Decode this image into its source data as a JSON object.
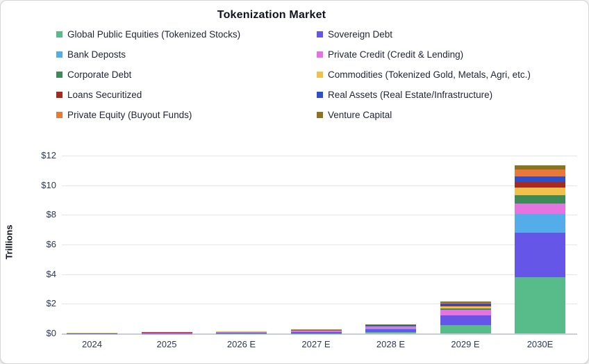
{
  "chart_data": {
    "type": "bar",
    "stacked": true,
    "title": "Tokenization Market",
    "ylabel": "Trillions",
    "ytick_prefix": "$",
    "yticks": [
      0,
      2,
      4,
      6,
      8,
      10,
      12
    ],
    "ylim": [
      0,
      12
    ],
    "grid": true,
    "legend_position": "top",
    "categories": [
      "2024",
      "2025",
      "2026 E",
      "2027 E",
      "2028 E",
      "2029 E",
      "2030E"
    ],
    "series": [
      {
        "name": "Global Public Equities (Tokenized Stocks)",
        "color": "#57BB8A",
        "values": [
          0,
          0,
          0.01,
          0.02,
          0.1,
          0.55,
          3.8
        ]
      },
      {
        "name": "Sovereign Debt",
        "color": "#6656E8",
        "values": [
          0.01,
          0.02,
          0.04,
          0.08,
          0.2,
          0.65,
          3.0
        ]
      },
      {
        "name": "Bank Deposts",
        "color": "#54ACE8",
        "values": [
          0,
          0,
          0.01,
          0.01,
          0.02,
          0.03,
          1.25
        ]
      },
      {
        "name": "Private Credit (Credit & Lending)",
        "color": "#E574E0",
        "values": [
          0.01,
          0.02,
          0.04,
          0.1,
          0.15,
          0.35,
          0.7
        ]
      },
      {
        "name": "Corporate Debt",
        "color": "#3D8B57",
        "values": [
          0.005,
          0.01,
          0.01,
          0.01,
          0.03,
          0.12,
          0.6
        ]
      },
      {
        "name": "Commodities (Tokenized Gold, Metals, Agri, etc.)",
        "color": "#F0C14B",
        "values": [
          0.01,
          0.02,
          0.02,
          0.02,
          0.03,
          0.14,
          0.5
        ]
      },
      {
        "name": "Loans Securitized",
        "color": "#A82A1E",
        "values": [
          0.005,
          0.005,
          0.005,
          0.01,
          0.01,
          0.02,
          0.35
        ]
      },
      {
        "name": "Real Assets (Real Estate/Infrastructure)",
        "color": "#2E4FC8",
        "values": [
          0.005,
          0.005,
          0.01,
          0.01,
          0.02,
          0.18,
          0.4
        ]
      },
      {
        "name": "Private Equity (Buyout Funds)",
        "color": "#E8793A",
        "values": [
          0.005,
          0.005,
          0.005,
          0.01,
          0.02,
          0.05,
          0.45
        ]
      },
      {
        "name": "Venture Capital",
        "color": "#8B7322",
        "values": [
          0.005,
          0.01,
          0.01,
          0.01,
          0.03,
          0.08,
          0.3
        ]
      }
    ]
  }
}
